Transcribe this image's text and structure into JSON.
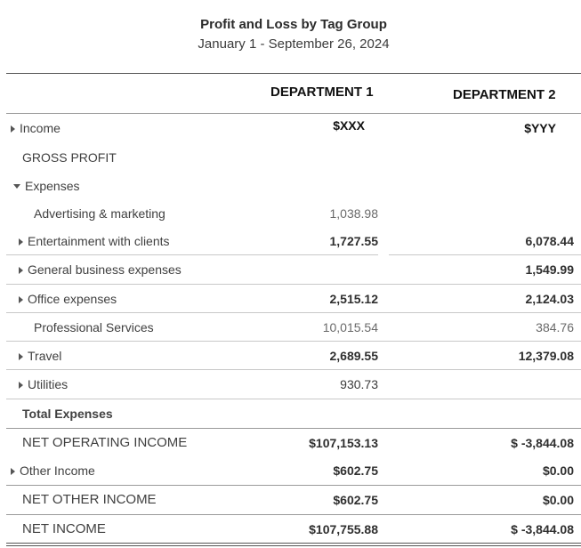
{
  "report": {
    "title": "Profit and Loss by Tag Group",
    "subtitle": "January 1 - September 26, 2024",
    "columns": [
      "DEPARTMENT 1",
      "DEPARTMENT 2"
    ]
  },
  "rows": [
    {
      "label": "Income",
      "dept1": "$XXX",
      "dept2": "$YYY"
    },
    {
      "label": "GROSS PROFIT",
      "dept1": "",
      "dept2": ""
    },
    {
      "label": "Expenses",
      "dept1": "",
      "dept2": ""
    },
    {
      "label": "Advertising & marketing",
      "dept1": "1,038.98",
      "dept2": ""
    },
    {
      "label": "Entertainment with clients",
      "dept1": "1,727.55",
      "dept2": "6,078.44"
    },
    {
      "label": "General business expenses",
      "dept1": "",
      "dept2": "1,549.99"
    },
    {
      "label": "Office expenses",
      "dept1": "2,515.12",
      "dept2": "2,124.03"
    },
    {
      "label": "Professional Services",
      "dept1": "10,015.54",
      "dept2": "384.76"
    },
    {
      "label": "Travel",
      "dept1": "2,689.55",
      "dept2": "12,379.08"
    },
    {
      "label": "Utilities",
      "dept1": "930.73",
      "dept2": ""
    },
    {
      "label": "Total Expenses",
      "dept1": "",
      "dept2": ""
    },
    {
      "label": "NET OPERATING INCOME",
      "dept1": "$107,153.13",
      "dept2": "$ -3,844.08"
    },
    {
      "label": "Other Income",
      "dept1": "$602.75",
      "dept2": "$0.00"
    },
    {
      "label": "NET OTHER INCOME",
      "dept1": "$602.75",
      "dept2": "$0.00"
    },
    {
      "label": "NET INCOME",
      "dept1": "$107,755.88",
      "dept2": "$ -3,844.08"
    }
  ]
}
